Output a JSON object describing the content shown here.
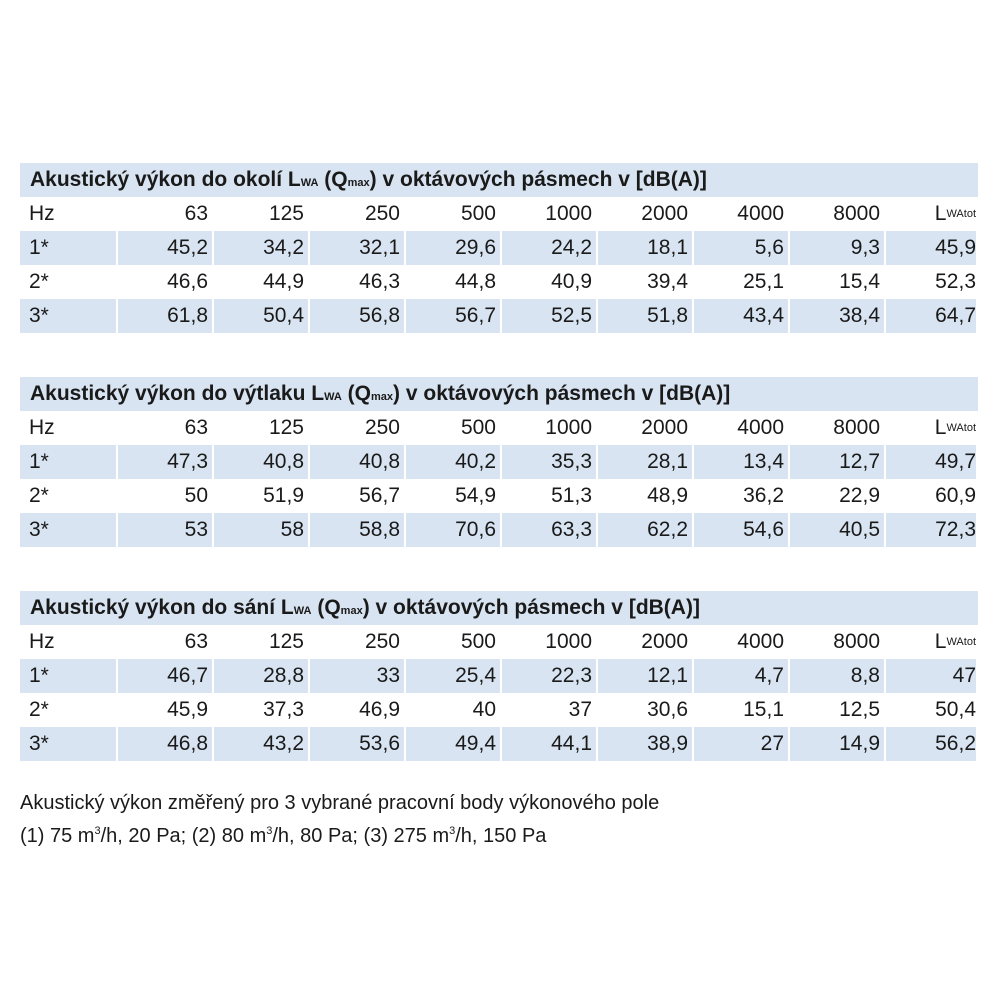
{
  "header_cells": [
    "63",
    "125",
    "250",
    "500",
    "1000",
    "2000",
    "4000",
    "8000"
  ],
  "hz_label": "Hz",
  "lwa_label": {
    "main": "L",
    "sub": "WAtot"
  },
  "tables": [
    {
      "title_a": "Akustický výkon do okolí L",
      "title_sub1": "WA",
      "title_b": " (Q",
      "title_sub2": "max",
      "title_c": ") v oktávových pásmech v [dB(A)]",
      "rows": [
        {
          "label": "1*",
          "values": [
            "45,2",
            "34,2",
            "32,1",
            "29,6",
            "24,2",
            "18,1",
            "5,6",
            "9,3",
            "45,9"
          ]
        },
        {
          "label": "2*",
          "values": [
            "46,6",
            "44,9",
            "46,3",
            "44,8",
            "40,9",
            "39,4",
            "25,1",
            "15,4",
            "52,3"
          ]
        },
        {
          "label": "3*",
          "values": [
            "61,8",
            "50,4",
            "56,8",
            "56,7",
            "52,5",
            "51,8",
            "43,4",
            "38,4",
            "64,7"
          ]
        }
      ]
    },
    {
      "title_a": "Akustický výkon do výtlaku L",
      "title_sub1": "WA",
      "title_b": " (Q",
      "title_sub2": "max",
      "title_c": ") v oktávových pásmech v [dB(A)]",
      "rows": [
        {
          "label": "1*",
          "values": [
            "47,3",
            "40,8",
            "40,8",
            "40,2",
            "35,3",
            "28,1",
            "13,4",
            "12,7",
            "49,7"
          ]
        },
        {
          "label": "2*",
          "values": [
            "50",
            "51,9",
            "56,7",
            "54,9",
            "51,3",
            "48,9",
            "36,2",
            "22,9",
            "60,9"
          ]
        },
        {
          "label": "3*",
          "values": [
            "53",
            "58",
            "58,8",
            "70,6",
            "63,3",
            "62,2",
            "54,6",
            "40,5",
            "72,3"
          ]
        }
      ]
    },
    {
      "title_a": "Akustický výkon do sání L",
      "title_sub1": "WA",
      "title_b": " (Q",
      "title_sub2": "max",
      "title_c": ") v oktávových pásmech v [dB(A)]",
      "rows": [
        {
          "label": "1*",
          "values": [
            "46,7",
            "28,8",
            "33",
            "25,4",
            "22,3",
            "12,1",
            "4,7",
            "8,8",
            "47"
          ]
        },
        {
          "label": "2*",
          "values": [
            "45,9",
            "37,3",
            "46,9",
            "40",
            "37",
            "30,6",
            "15,1",
            "12,5",
            "50,4"
          ]
        },
        {
          "label": "3*",
          "values": [
            "46,8",
            "43,2",
            "53,6",
            "49,4",
            "44,1",
            "38,9",
            "27",
            "14,9",
            "56,2"
          ]
        }
      ]
    }
  ],
  "note": {
    "line1": "Akustický výkon změřený pro 3 vybrané pracovní body výkonového pole",
    "line2_a": "(1) 75 m",
    "sup": "3",
    "line2_b": "/h, 20 Pa; (2) 80 m",
    "line2_c": "/h, 80 Pa; (3) 275 m",
    "line2_d": "/h, 150 Pa"
  },
  "colors": {
    "band": "#d8e4f1",
    "text": "#1a1a1a"
  }
}
